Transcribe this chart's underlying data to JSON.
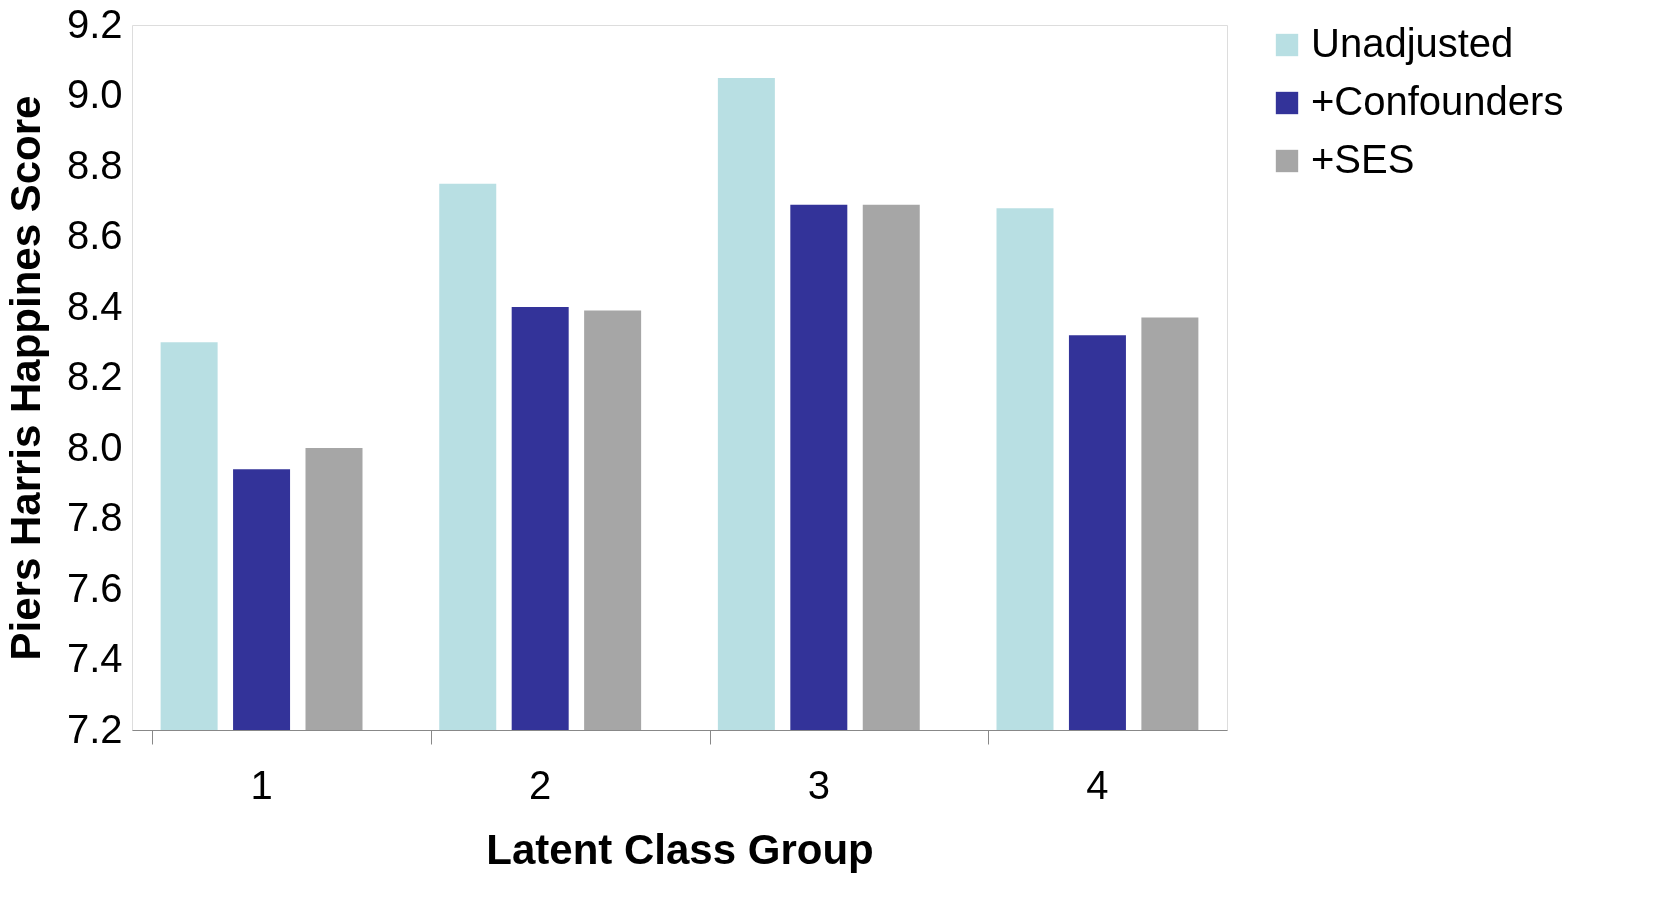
{
  "chart_data": {
    "type": "bar",
    "xlabel": "Latent Class Group",
    "ylabel": "Piers Harris Happines Score",
    "categories": [
      "1",
      "2",
      "3",
      "4"
    ],
    "series": [
      {
        "name": "Unadjusted",
        "color": "#b8dfe3",
        "values": [
          8.3,
          8.75,
          9.05,
          8.68
        ]
      },
      {
        "name": "+Confounders",
        "color": "#333399",
        "values": [
          7.94,
          8.4,
          8.69,
          8.32
        ]
      },
      {
        "name": "+SES",
        "color": "#a6a6a6",
        "values": [
          8.0,
          8.39,
          8.69,
          8.37
        ]
      }
    ],
    "ylim": [
      7.2,
      9.2
    ],
    "yticks": [
      7.2,
      7.4,
      7.6,
      7.8,
      {
        "value": 8,
        "label": "8.0"
      },
      8.2,
      8.4,
      8.6,
      8.8,
      {
        "value": 9,
        "label": "9.0"
      },
      9.2
    ],
    "grid": false,
    "legend": "right"
  }
}
